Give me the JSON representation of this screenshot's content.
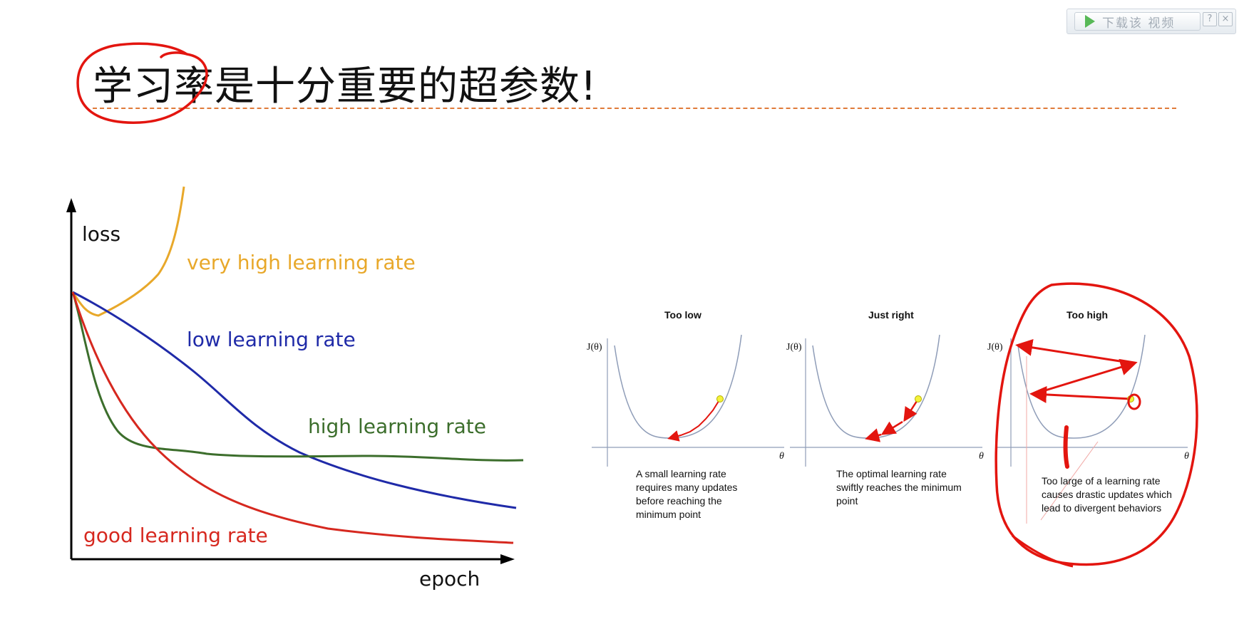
{
  "toolbar": {
    "download_label": "下载该 视频",
    "help_label": "?",
    "close_label": "×"
  },
  "slide": {
    "title": "学习率是十分重要的超参数!"
  },
  "left_diagram": {
    "y_axis_label": "loss",
    "x_axis_label": "epoch",
    "curves": [
      {
        "label": "very high learning rate",
        "color": "#e8a82a"
      },
      {
        "label": "low learning rate",
        "color": "#1f2aa8"
      },
      {
        "label": "high learning rate",
        "color": "#3c6e2c"
      },
      {
        "label": "good learning rate",
        "color": "#d6281f"
      }
    ]
  },
  "right_diagram": {
    "axis_y": "J(θ)",
    "axis_x": "θ",
    "panels": [
      {
        "title": "Too low",
        "caption": "A small learning rate requires many updates before reaching the minimum point"
      },
      {
        "title": "Just right",
        "caption": "The optimal learning rate swiftly reaches the minimum point"
      },
      {
        "title": "Too high",
        "caption": "Too large of a learning rate causes drastic updates which lead to divergent behaviors"
      }
    ]
  },
  "colors": {
    "annotation": "#e3150f",
    "divider": "#e07b3a",
    "parabola": "#8f9db8",
    "marker": "#f4f23a"
  }
}
